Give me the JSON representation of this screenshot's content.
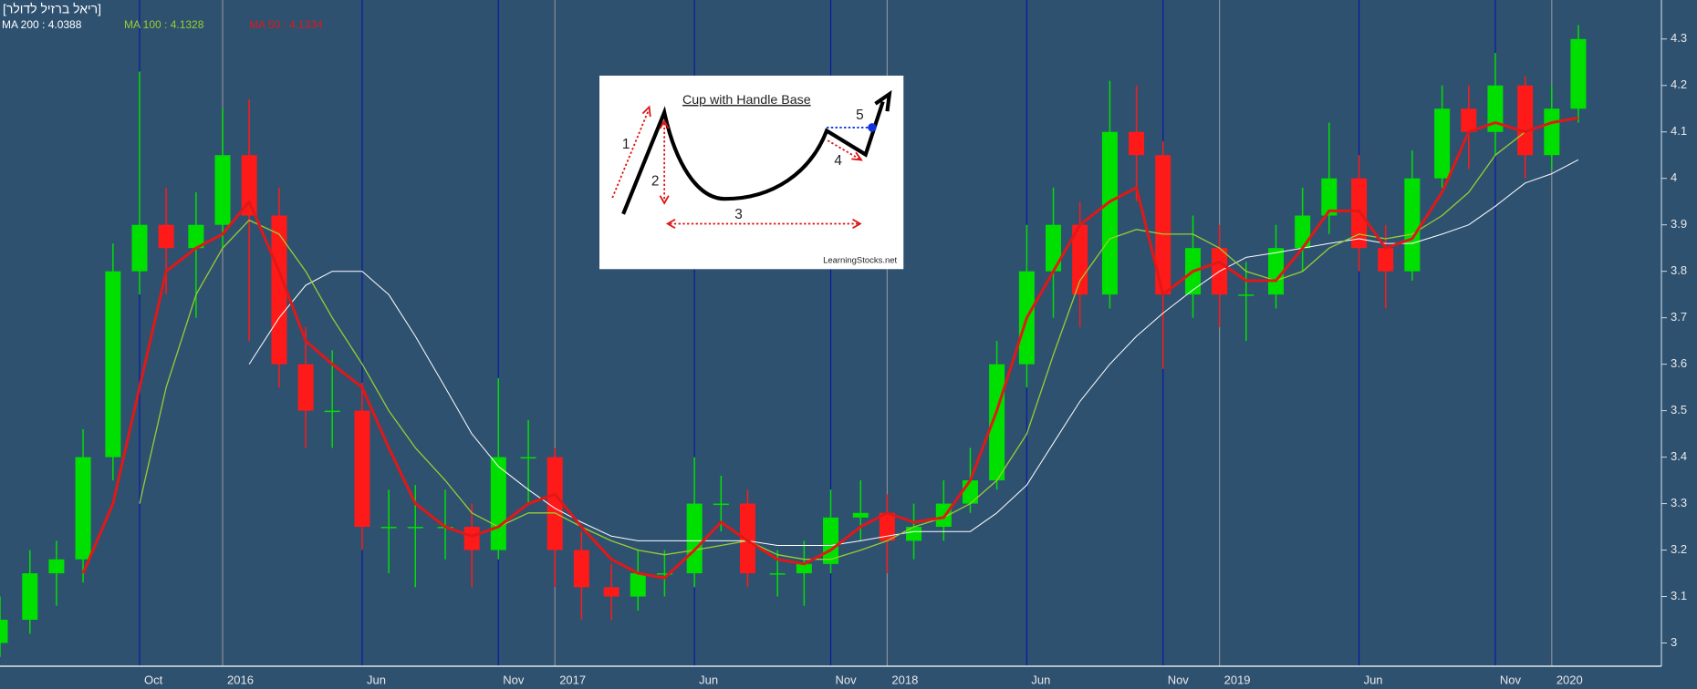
{
  "chart_data": {
    "type": "candlestick",
    "title": "[ריאל ברזיל לדולר]",
    "x": [
      2015.33,
      2015.42,
      2015.5,
      2015.58,
      2015.67,
      2015.75,
      2015.83,
      2015.92,
      2016,
      2016.08,
      2016.17,
      2016.25,
      2016.33,
      2016.42,
      2016.5,
      2016.58,
      2016.67,
      2016.75,
      2016.83,
      2016.92,
      2017,
      2017.08,
      2017.17,
      2017.25,
      2017.33,
      2017.42,
      2017.5,
      2017.58,
      2017.67,
      2017.75,
      2017.83,
      2017.92,
      2018,
      2018.08,
      2018.17,
      2018.25,
      2018.33,
      2018.42,
      2018.5,
      2018.58,
      2018.67,
      2018.75,
      2018.83,
      2018.92,
      2019,
      2019.08,
      2019.17,
      2019.25,
      2019.33,
      2019.42,
      2019.5,
      2019.58,
      2019.67,
      2019.75,
      2019.83,
      2019.92,
      2020,
      2020.08
    ],
    "open": [
      3.0,
      3.05,
      3.15,
      3.18,
      3.4,
      3.8,
      3.9,
      3.85,
      3.9,
      4.05,
      3.92,
      3.6,
      3.5,
      3.5,
      3.25,
      3.25,
      3.25,
      3.25,
      3.2,
      3.4,
      3.4,
      3.2,
      3.12,
      3.1,
      3.15,
      3.15,
      3.3,
      3.3,
      3.15,
      3.15,
      3.17,
      3.27,
      3.28,
      3.22,
      3.25,
      3.3,
      3.35,
      3.6,
      3.8,
      3.9,
      3.75,
      4.1,
      4.05,
      3.75,
      3.85,
      3.75,
      3.75,
      3.85,
      3.92,
      4.0,
      3.85,
      3.8,
      4.0,
      4.15,
      4.1,
      4.2,
      4.05,
      4.15
    ],
    "high": [
      3.1,
      3.2,
      3.22,
      3.46,
      3.86,
      4.23,
      3.98,
      3.97,
      4.15,
      4.17,
      3.98,
      3.68,
      3.63,
      3.56,
      3.33,
      3.34,
      3.33,
      3.3,
      3.57,
      3.48,
      3.42,
      3.24,
      3.17,
      3.2,
      3.2,
      3.4,
      3.36,
      3.33,
      3.2,
      3.22,
      3.33,
      3.35,
      3.32,
      3.3,
      3.35,
      3.42,
      3.65,
      3.9,
      3.98,
      3.95,
      4.21,
      4.2,
      4.08,
      3.92,
      3.9,
      3.82,
      3.9,
      3.98,
      4.12,
      4.05,
      3.9,
      4.06,
      4.2,
      4.2,
      4.27,
      4.22,
      4.2,
      4.33
    ],
    "low": [
      2.97,
      3.02,
      3.08,
      3.13,
      3.35,
      3.75,
      3.75,
      3.7,
      3.85,
      3.65,
      3.55,
      3.42,
      3.42,
      3.2,
      3.15,
      3.12,
      3.18,
      3.12,
      3.18,
      3.3,
      3.12,
      3.05,
      3.05,
      3.07,
      3.1,
      3.12,
      3.24,
      3.12,
      3.1,
      3.08,
      3.15,
      3.22,
      3.15,
      3.18,
      3.22,
      3.28,
      3.33,
      3.55,
      3.7,
      3.68,
      3.72,
      3.95,
      3.59,
      3.7,
      3.68,
      3.65,
      3.72,
      3.8,
      3.88,
      3.8,
      3.72,
      3.78,
      3.98,
      4.02,
      4.05,
      4.0,
      4.02,
      4.12
    ],
    "close": [
      3.05,
      3.15,
      3.18,
      3.4,
      3.8,
      3.9,
      3.85,
      3.9,
      4.05,
      3.92,
      3.6,
      3.5,
      3.5,
      3.25,
      3.25,
      3.25,
      3.25,
      3.2,
      3.4,
      3.4,
      3.2,
      3.12,
      3.1,
      3.15,
      3.15,
      3.3,
      3.3,
      3.15,
      3.15,
      3.17,
      3.27,
      3.28,
      3.22,
      3.25,
      3.3,
      3.35,
      3.6,
      3.8,
      3.9,
      3.75,
      4.1,
      4.05,
      3.75,
      3.85,
      3.75,
      3.75,
      3.85,
      3.92,
      4.0,
      3.85,
      3.8,
      4.0,
      4.15,
      4.1,
      4.2,
      4.05,
      4.15,
      4.3
    ],
    "up_color": "#00e000",
    "down_color": "#ff1a1a",
    "series": [
      {
        "name": "MA 200 : 4.0388",
        "color": "#ffffff",
        "width": 1,
        "values": [
          null,
          null,
          null,
          null,
          null,
          null,
          null,
          null,
          null,
          3.6,
          3.7,
          3.77,
          3.8,
          3.8,
          3.75,
          3.66,
          3.55,
          3.45,
          3.38,
          3.33,
          3.29,
          3.26,
          3.23,
          3.22,
          3.22,
          3.22,
          3.22,
          3.22,
          3.21,
          3.21,
          3.21,
          3.22,
          3.23,
          3.24,
          3.24,
          3.24,
          3.28,
          3.34,
          3.43,
          3.52,
          3.6,
          3.66,
          3.71,
          3.76,
          3.8,
          3.83,
          3.84,
          3.85,
          3.86,
          3.87,
          3.86,
          3.86,
          3.88,
          3.9,
          3.94,
          3.99,
          4.01,
          4.04
        ]
      },
      {
        "name": "MA 100 : 4.1328",
        "color": "#9acd32",
        "width": 1.3,
        "values": [
          null,
          null,
          null,
          null,
          null,
          3.3,
          3.55,
          3.75,
          3.85,
          3.91,
          3.88,
          3.8,
          3.7,
          3.6,
          3.5,
          3.42,
          3.35,
          3.28,
          3.25,
          3.28,
          3.28,
          3.25,
          3.22,
          3.2,
          3.19,
          3.2,
          3.21,
          3.22,
          3.19,
          3.18,
          3.18,
          3.2,
          3.22,
          3.25,
          3.27,
          3.3,
          3.35,
          3.45,
          3.62,
          3.78,
          3.87,
          3.89,
          3.88,
          3.88,
          3.85,
          3.8,
          3.78,
          3.8,
          3.85,
          3.88,
          3.87,
          3.88,
          3.92,
          3.97,
          4.05,
          4.1,
          4.12,
          4.13
        ]
      },
      {
        "name": "MA 50 : 4.1334",
        "color": "#e01818",
        "width": 3,
        "values": [
          null,
          null,
          null,
          3.15,
          3.3,
          3.55,
          3.8,
          3.85,
          3.88,
          3.95,
          3.8,
          3.65,
          3.6,
          3.55,
          3.42,
          3.3,
          3.25,
          3.23,
          3.25,
          3.3,
          3.32,
          3.25,
          3.18,
          3.15,
          3.14,
          3.2,
          3.26,
          3.22,
          3.18,
          3.17,
          3.2,
          3.25,
          3.28,
          3.26,
          3.27,
          3.35,
          3.5,
          3.7,
          3.8,
          3.9,
          3.95,
          3.98,
          3.75,
          3.8,
          3.82,
          3.78,
          3.78,
          3.85,
          3.93,
          3.93,
          3.85,
          3.87,
          3.97,
          4.1,
          4.12,
          4.1,
          4.12,
          4.13
        ]
      }
    ],
    "xlim": [
      2015.33,
      2020.33
    ],
    "xticks": [
      {
        "value": 2015.75,
        "label": "Oct"
      },
      2016,
      {
        "value": 2016.42,
        "label": "Jun"
      },
      {
        "value": 2016.83,
        "label": "Nov"
      },
      2017,
      {
        "value": 2017.42,
        "label": "Jun"
      },
      {
        "value": 2017.83,
        "label": "Nov"
      },
      2018,
      {
        "value": 2018.42,
        "label": "Jun"
      },
      {
        "value": 2018.83,
        "label": "Nov"
      },
      2019,
      {
        "value": 2019.42,
        "label": "Jun"
      },
      {
        "value": 2019.83,
        "label": "Nov"
      },
      2020
    ],
    "ylim": [
      2.95,
      4.38
    ],
    "yticks": [
      3,
      3.1,
      3.2,
      3.3,
      3.4,
      3.5,
      3.6,
      3.7,
      3.8,
      3.9,
      4,
      4.1,
      4.2,
      4.3
    ],
    "grid": true
  },
  "inset": {
    "title": "Cup with Handle Base",
    "labels": [
      "1",
      "2",
      "3",
      "4",
      "5"
    ],
    "credit": "LearningStocks.net"
  }
}
